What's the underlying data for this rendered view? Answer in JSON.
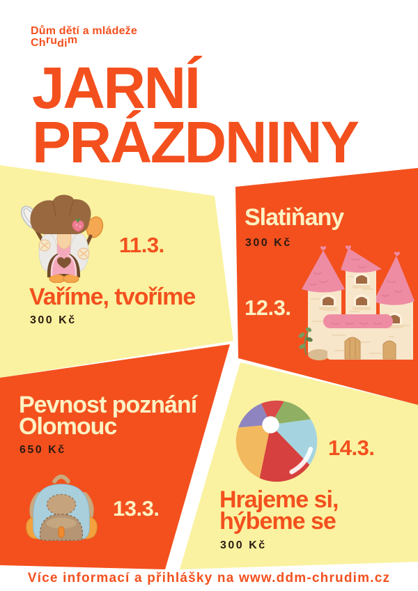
{
  "colors": {
    "orange": "#F3501E",
    "yellow": "#FAF2A0",
    "cream": "#FCF2C4",
    "dark": "#2A1B12",
    "white": "#FFFFFF"
  },
  "header": {
    "org_name_line1": "Dům dětí a mládeže",
    "org_name_line2": "Chrudim",
    "title": "JARNÍ\nPRÁZDNINY"
  },
  "events": [
    {
      "date": "11.3.",
      "title": "Vaříme, tvoříme",
      "price": "300 Kč",
      "icon": "gnome-chef-icon"
    },
    {
      "date": "12.3.",
      "title": "Slatiňany",
      "price": "300 Kč",
      "icon": "castle-icon"
    },
    {
      "date": "13.3.",
      "title": "Pevnost poznání\nOlomouc",
      "price": "650 Kč",
      "icon": "backpack-icon"
    },
    {
      "date": "14.3.",
      "title": "Hrajeme si,\nhýbeme se",
      "price": "300 Kč",
      "icon": "beach-ball-icon"
    }
  ],
  "footer": {
    "info_text": "Více informací a přihlášky na www.ddm-chrudim.cz"
  }
}
